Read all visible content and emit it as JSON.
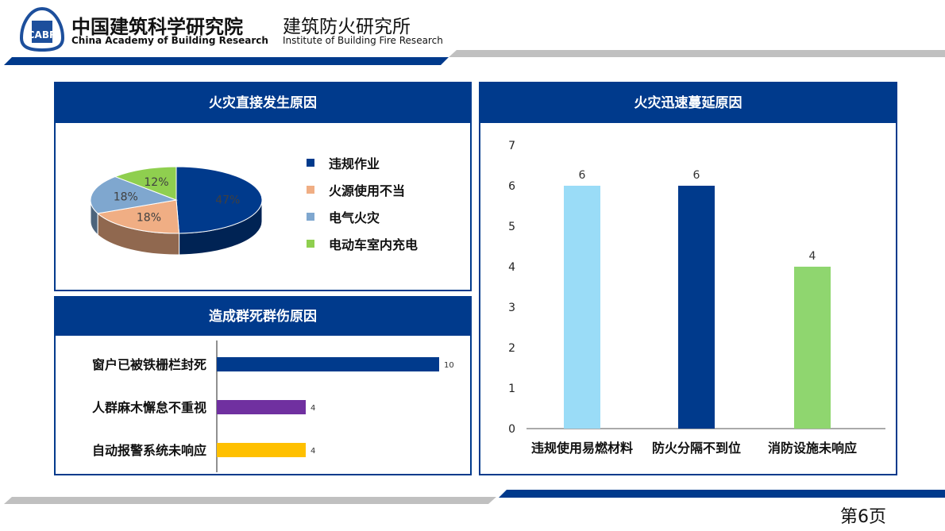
{
  "header": {
    "org_cn": "中国建筑科学研究院",
    "org_en": "China Academy of Building Research",
    "inst_cn": "建筑防火研究所",
    "inst_en": "Institute of Building Fire Research",
    "logo_text": "CABR"
  },
  "footer": {
    "page": "第6页"
  },
  "colors": {
    "brand": "#003a8c",
    "gray": "#c0c0c0"
  },
  "chart_data": [
    {
      "type": "pie",
      "title": "火灾直接发生原因",
      "legend_position": "right",
      "style": "3d",
      "slices": [
        {
          "label": "违规作业",
          "value": 47,
          "display": "47%",
          "color": "#003a8c"
        },
        {
          "label": "火源使用不当",
          "value": 18,
          "display": "18%",
          "color": "#f0ae84"
        },
        {
          "label": "电气火灾",
          "value": 18,
          "display": "18%",
          "color": "#7fa7cf"
        },
        {
          "label": "电动车室内充电",
          "value": 12,
          "display": "12%",
          "color": "#8fcf4f"
        }
      ]
    },
    {
      "type": "bar",
      "orientation": "horizontal",
      "title": "造成群死群伤原因",
      "categories": [
        "窗户已被铁栅栏封死",
        "人群麻木懈怠不重视",
        "自动报警系统未响应"
      ],
      "values": [
        10,
        4,
        4
      ],
      "colors": [
        "#003a8c",
        "#7030a0",
        "#ffc000"
      ],
      "labels": [
        "10",
        "4",
        "4"
      ]
    },
    {
      "type": "bar",
      "title": "火灾迅速蔓延原因",
      "categories": [
        "违规使用易燃材料",
        "防火分隔不到位",
        "消防设施未响应"
      ],
      "values": [
        6,
        6,
        4
      ],
      "colors": [
        "#9adcf7",
        "#003a8c",
        "#8fd66f"
      ],
      "labels": [
        "6",
        "6",
        "4"
      ],
      "ylim": [
        0,
        7
      ],
      "yticks": [
        "0",
        "1",
        "2",
        "3",
        "4",
        "5",
        "6",
        "7"
      ],
      "grid": false
    }
  ]
}
